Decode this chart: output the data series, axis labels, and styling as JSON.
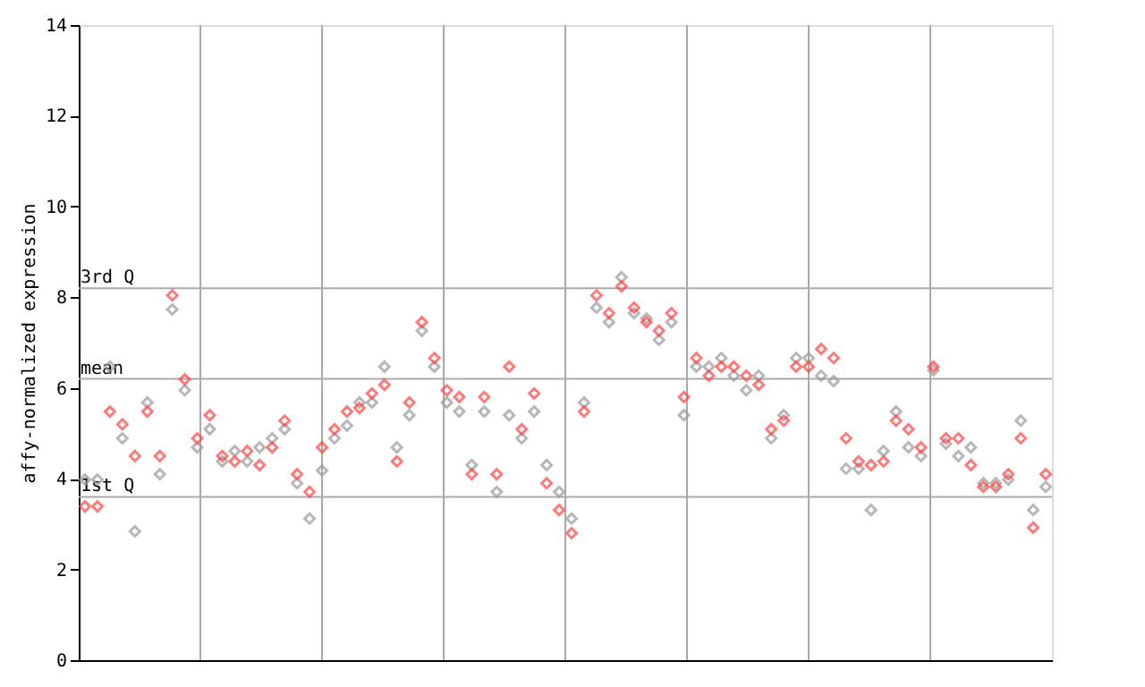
{
  "chart_data": {
    "type": "scatter",
    "ylabel": "affy-normalized expression",
    "marker": "diamond",
    "tick_labels": "y",
    "ylim": [
      0,
      14
    ],
    "yticks": [
      0,
      2,
      4,
      6,
      8,
      10,
      12,
      14
    ],
    "categories": [
      null,
      null,
      null,
      null,
      null,
      null,
      null,
      null,
      null,
      null,
      null,
      null,
      null,
      null,
      null,
      null,
      null,
      null,
      null,
      null,
      null,
      null,
      null,
      null,
      null,
      null,
      null,
      null,
      null,
      null,
      null,
      null,
      null,
      null,
      null,
      null,
      null,
      null,
      null,
      null,
      null,
      null,
      null,
      null,
      null,
      null,
      null,
      null,
      null,
      null,
      null,
      null,
      null,
      null,
      null,
      null,
      null,
      null,
      null,
      null,
      null,
      null,
      null,
      null,
      null,
      null,
      null,
      null,
      null,
      null,
      null,
      null,
      null,
      null,
      null,
      null,
      null,
      null
    ],
    "series": [
      {
        "color": "#999999",
        "values": [
          3.98,
          3.98,
          6.47,
          4.89,
          2.84,
          5.68,
          4.1,
          7.73,
          5.95,
          4.69,
          5.09,
          4.38,
          4.61,
          4.38,
          4.69,
          4.89,
          5.09,
          3.9,
          3.12,
          4.18,
          4.89,
          5.17,
          5.68,
          5.68,
          6.47,
          4.69,
          5.4,
          7.26,
          6.47,
          5.68,
          5.48,
          4.3,
          5.48,
          3.71,
          5.4,
          4.89,
          5.48,
          4.3,
          3.71,
          3.12,
          5.68,
          7.77,
          7.45,
          8.44,
          7.65,
          7.53,
          7.06,
          7.45,
          5.4,
          6.47,
          6.47,
          6.66,
          6.27,
          5.95,
          6.27,
          4.89,
          5.4,
          6.66,
          6.66,
          6.27,
          6.15,
          4.22,
          4.22,
          3.31,
          4.61,
          5.48,
          4.69,
          4.5,
          6.39,
          4.77,
          4.5,
          4.69,
          3.9,
          3.9,
          3.98,
          5.28,
          3.31,
          3.82
        ]
      },
      {
        "color": "#ff4444",
        "values": [
          3.39,
          3.39,
          5.48,
          5.2,
          4.5,
          5.48,
          4.5,
          8.04,
          6.19,
          4.89,
          5.4,
          4.5,
          4.38,
          4.61,
          4.3,
          4.69,
          5.28,
          4.1,
          3.71,
          4.69,
          5.09,
          5.48,
          5.56,
          5.88,
          6.07,
          4.38,
          5.68,
          7.45,
          6.66,
          5.95,
          5.8,
          4.1,
          5.8,
          4.1,
          6.47,
          5.09,
          5.88,
          3.9,
          3.31,
          2.8,
          5.48,
          8.04,
          7.65,
          8.24,
          7.77,
          7.45,
          7.26,
          7.65,
          5.8,
          6.66,
          6.27,
          6.47,
          6.47,
          6.27,
          6.07,
          5.09,
          5.28,
          6.47,
          6.47,
          6.86,
          6.66,
          4.89,
          4.38,
          4.3,
          4.38,
          5.28,
          5.09,
          4.69,
          6.47,
          4.89,
          4.89,
          4.3,
          3.82,
          3.82,
          4.1,
          4.89,
          2.92,
          4.1
        ]
      }
    ],
    "ref_lines": [
      {
        "axis": "y",
        "value": 8.2,
        "label": "3rd Q",
        "color": "#aaaaaa"
      },
      {
        "axis": "y",
        "value": 6.2,
        "label": "mean",
        "color": "#aaaaaa"
      },
      {
        "axis": "y",
        "value": 3.6,
        "label": "1st Q",
        "color": "#aaaaaa"
      }
    ]
  }
}
